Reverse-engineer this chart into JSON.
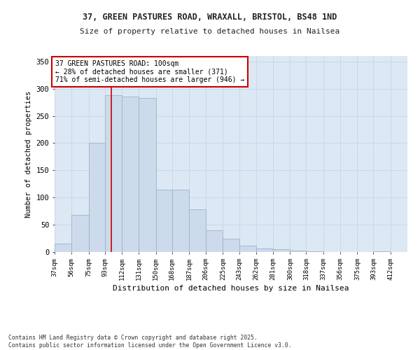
{
  "title_line1": "37, GREEN PASTURES ROAD, WRAXALL, BRISTOL, BS48 1ND",
  "title_line2": "Size of property relative to detached houses in Nailsea",
  "xlabel": "Distribution of detached houses by size in Nailsea",
  "ylabel": "Number of detached properties",
  "bar_color": "#ccdaeb",
  "bar_edge_color": "#9ab4cc",
  "vline_x": 100,
  "vline_color": "#cc0000",
  "annotation_text": "37 GREEN PASTURES ROAD: 100sqm\n← 28% of detached houses are smaller (371)\n71% of semi-detached houses are larger (946) →",
  "annotation_box_color": "#ffffff",
  "annotation_box_edge": "#cc0000",
  "ylim": [
    0,
    360
  ],
  "yticks": [
    0,
    50,
    100,
    150,
    200,
    250,
    300,
    350
  ],
  "grid_color": "#ccd8e8",
  "bg_color": "#dce8f4",
  "footer_text": "Contains HM Land Registry data © Crown copyright and database right 2025.\nContains public sector information licensed under the Open Government Licence v3.0.",
  "bin_edges": [
    37,
    56,
    75,
    93,
    112,
    131,
    150,
    168,
    187,
    206,
    225,
    243,
    262,
    281,
    300,
    318,
    337,
    356,
    375,
    393,
    412,
    431
  ],
  "hist_values": [
    15,
    68,
    200,
    288,
    285,
    283,
    115,
    115,
    78,
    40,
    25,
    12,
    7,
    5,
    3,
    1,
    0,
    0,
    0,
    1,
    0
  ]
}
